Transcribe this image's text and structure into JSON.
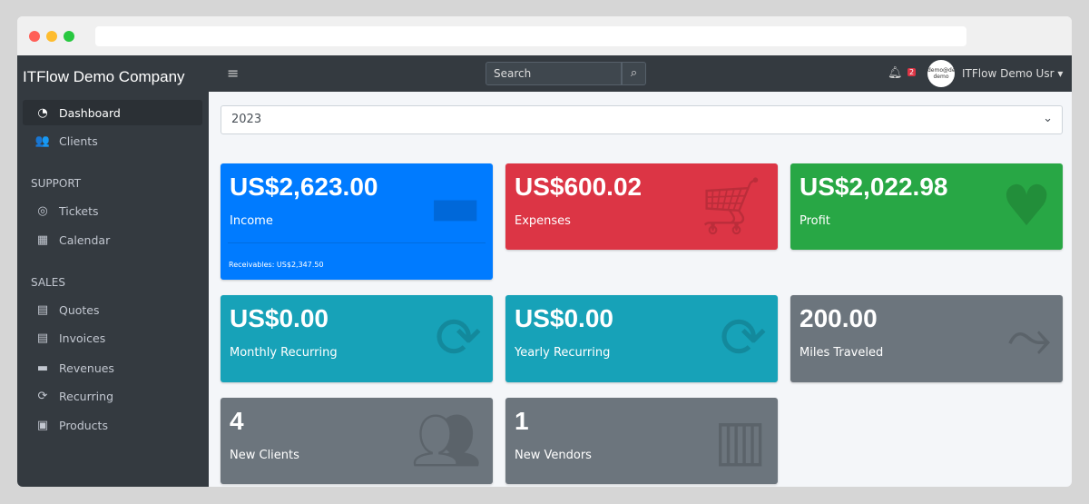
{
  "browser": {
    "dots": [
      "#ff5f57",
      "#febc2e",
      "#28c840"
    ]
  },
  "sidebar": {
    "brand": "ITFlow Demo Company",
    "items": [
      {
        "label": "Dashboard",
        "icon": "tachometer-icon"
      },
      {
        "label": "Clients",
        "icon": "users-icon"
      }
    ],
    "support_header": "SUPPORT",
    "support": [
      {
        "label": "Tickets",
        "icon": "life-ring-icon"
      },
      {
        "label": "Calendar",
        "icon": "calendar-icon"
      }
    ],
    "sales_header": "SALES",
    "sales": [
      {
        "label": "Quotes",
        "icon": "file-icon"
      },
      {
        "label": "Invoices",
        "icon": "invoice-icon"
      },
      {
        "label": "Revenues",
        "icon": "credit-card-icon"
      },
      {
        "label": "Recurring",
        "icon": "sync-icon"
      },
      {
        "label": "Products",
        "icon": "box-icon"
      }
    ]
  },
  "topbar": {
    "search_placeholder": "Search",
    "notifications": "2",
    "avatar_text": "demo@demo demo",
    "user": "ITFlow Demo Usr"
  },
  "year_select": "2023",
  "cards": [
    {
      "value": "US$2,623.00",
      "label": "Income",
      "footer": "Receivables: US$2,347.50",
      "color": "#007bff",
      "icon": "credit-card-icon"
    },
    {
      "value": "US$600.02",
      "label": "Expenses",
      "color": "#dc3545",
      "icon": "cart-icon"
    },
    {
      "value": "US$2,022.98",
      "label": "Profit",
      "color": "#28a745",
      "icon": "heart-icon"
    },
    {
      "value": "US$0.00",
      "label": "Monthly Recurring",
      "color": "#17a2b8",
      "icon": "sync-icon"
    },
    {
      "value": "US$0.00",
      "label": "Yearly Recurring",
      "color": "#17a2b8",
      "icon": "sync-icon"
    },
    {
      "value": "200.00",
      "label": "Miles Traveled",
      "color": "#6c757d",
      "icon": "route-icon"
    },
    {
      "value": "4",
      "label": "New Clients",
      "color": "#6c757d",
      "icon": "users-icon"
    },
    {
      "value": "1",
      "label": "New Vendors",
      "color": "#6c757d",
      "icon": "building-icon"
    }
  ]
}
